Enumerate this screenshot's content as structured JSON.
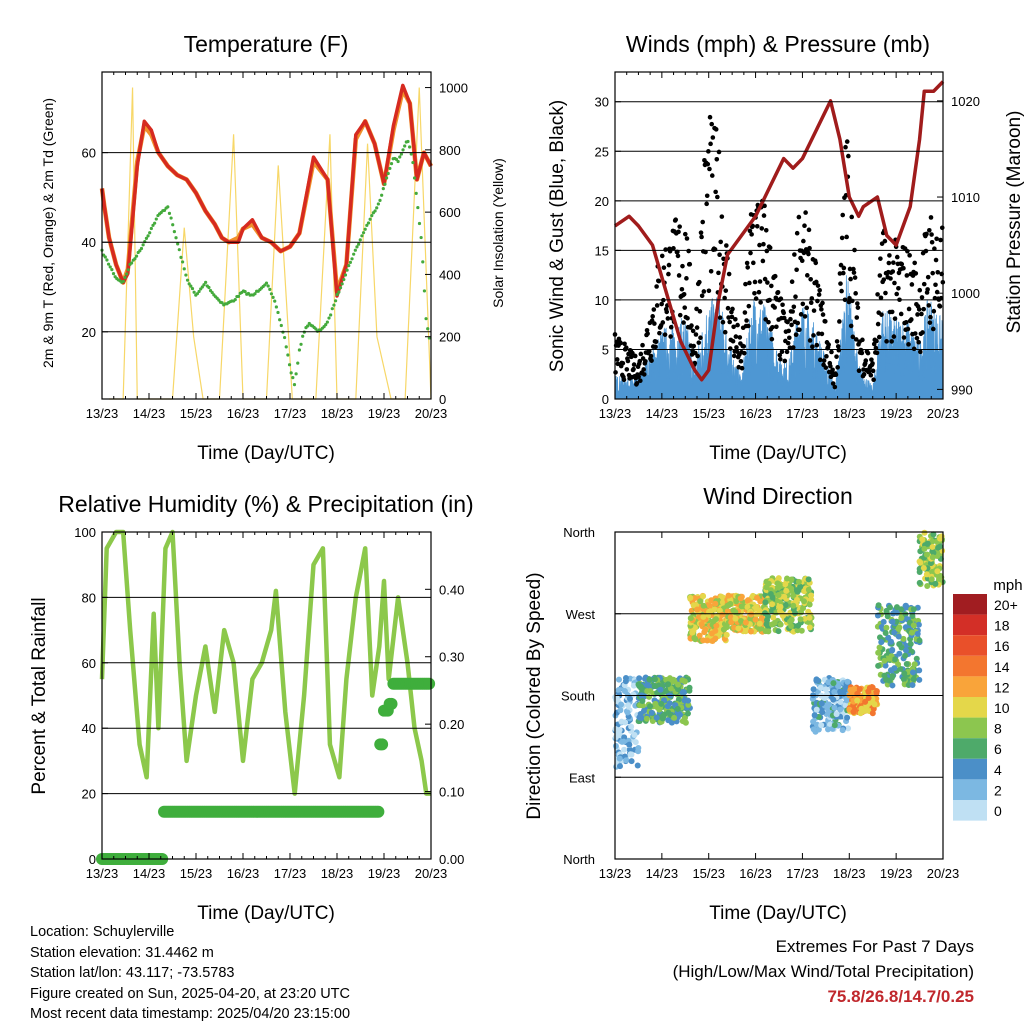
{
  "panels": {
    "temperature": {
      "title": "Temperature (F)",
      "ylabel_left": "2m & 9m T (Red, Orange) & 2m Td (Green)",
      "ylabel_right": "Solar Insolation (Yellow)",
      "xlabel": "Time (Day/UTC)"
    },
    "winds": {
      "title": "Winds (mph) & Pressure (mb)",
      "ylabel_left": "Sonic Wind & Gust (Blue, Black)",
      "ylabel_right": "Station Pressure (Maroon)",
      "xlabel": "Time (Day/UTC)"
    },
    "humidity": {
      "title": "Relative Humidity (%) & Precipitation (in)",
      "ylabel_left": "Percent & Total Rainfall",
      "xlabel": "Time (Day/UTC)"
    },
    "direction": {
      "title": "Wind Direction",
      "ylabel_left": "Direction (Colored By Speed)",
      "xlabel": "Time (Day/UTC)",
      "legend_title": "mph"
    }
  },
  "colors": {
    "temp2m": "#d62a20",
    "temp9m": "#f0902a",
    "dewpoint": "#44aa3c",
    "solar": "#f7d768",
    "wind": "#4e97d3",
    "gust": "#000000",
    "pressure": "#a01c1c",
    "humidity": "#8cc84b",
    "precip": "#3fae3c"
  },
  "chart_data": [
    {
      "type": "line",
      "title": "Temperature (F)",
      "x_ticks": [
        "13/23",
        "14/23",
        "15/23",
        "16/23",
        "17/23",
        "18/23",
        "19/23",
        "20/23"
      ],
      "xlim": [
        0,
        7
      ],
      "ylim": [
        5,
        78
      ],
      "y_ticks": [
        20,
        40,
        60
      ],
      "y2lim": [
        0,
        1050
      ],
      "y2_ticks": [
        0,
        200,
        400,
        600,
        800,
        1000
      ],
      "series": [
        {
          "name": "2m T",
          "axis": "left",
          "x": [
            0,
            0.05,
            0.15,
            0.3,
            0.45,
            0.55,
            0.75,
            0.9,
            1.05,
            1.2,
            1.4,
            1.6,
            1.8,
            2.0,
            2.2,
            2.4,
            2.55,
            2.7,
            2.9,
            3.0,
            3.2,
            3.4,
            3.6,
            3.8,
            4.0,
            4.2,
            4.5,
            4.8,
            5.0,
            5.2,
            5.4,
            5.6,
            5.8,
            6.0,
            6.2,
            6.4,
            6.55,
            6.7,
            6.85,
            7.0
          ],
          "y": [
            52,
            48,
            41,
            35,
            31,
            33,
            57,
            67,
            65,
            60,
            57,
            55,
            54,
            51,
            47,
            44,
            41,
            40,
            40,
            43,
            45,
            41,
            40,
            38,
            39,
            42,
            59,
            54,
            28,
            35,
            64,
            67,
            62,
            53,
            66,
            75,
            71,
            54,
            60,
            57
          ]
        },
        {
          "name": "9m T",
          "axis": "left",
          "x": [
            0,
            0.05,
            0.15,
            0.3,
            0.45,
            0.55,
            0.75,
            0.9,
            1.05,
            1.2,
            1.4,
            1.6,
            1.8,
            2.0,
            2.2,
            2.4,
            2.55,
            2.7,
            2.9,
            3.0,
            3.2,
            3.4,
            3.6,
            3.8,
            4.0,
            4.2,
            4.5,
            4.8,
            5.0,
            5.2,
            5.4,
            5.6,
            5.8,
            6.0,
            6.2,
            6.4,
            6.55,
            6.7,
            6.85,
            7.0
          ],
          "y": [
            52,
            48,
            41,
            35,
            31,
            34,
            58,
            66,
            64,
            60,
            57,
            55,
            54,
            51,
            47,
            44,
            41,
            40,
            41,
            43,
            44,
            41,
            40,
            38,
            39,
            42,
            58,
            54,
            29,
            35,
            63,
            67,
            62,
            53,
            65,
            74,
            71,
            54,
            60,
            57
          ]
        },
        {
          "name": "2m Td",
          "axis": "left",
          "x": [
            0,
            0.1,
            0.3,
            0.45,
            0.6,
            0.8,
            1.0,
            1.2,
            1.4,
            1.6,
            1.8,
            2.0,
            2.2,
            2.4,
            2.6,
            2.8,
            3.0,
            3.2,
            3.5,
            3.7,
            3.9,
            4.0,
            4.1,
            4.2,
            4.3,
            4.4,
            4.6,
            4.8,
            5.0,
            5.3,
            5.6,
            5.9,
            6.2,
            6.3,
            6.5,
            6.6,
            6.8,
            6.9,
            7.0
          ],
          "y": [
            38,
            36,
            32,
            31,
            35,
            38,
            42,
            46,
            48,
            40,
            32,
            28,
            31,
            28,
            26,
            27,
            29,
            28,
            31,
            26,
            18,
            12,
            8,
            16,
            20,
            22,
            20,
            22,
            28,
            36,
            43,
            49,
            59,
            58,
            63,
            59,
            40,
            22,
            17
          ]
        },
        {
          "name": "Solar",
          "axis": "right",
          "x": [
            0.15,
            0.45,
            0.65,
            0.75,
            1.0,
            1.5,
            1.75,
            1.95,
            2.15,
            2.5,
            2.8,
            3.0,
            3.1,
            3.5,
            3.75,
            4.05,
            4.55,
            4.85,
            5.0,
            5.4,
            5.65,
            5.85,
            6.15,
            6.45,
            6.75,
            7.0
          ],
          "y": [
            0,
            0,
            1000,
            0,
            0,
            0,
            550,
            200,
            0,
            0,
            850,
            0,
            0,
            0,
            750,
            0,
            0,
            850,
            0,
            0,
            820,
            200,
            0,
            0,
            1000,
            0
          ]
        }
      ]
    },
    {
      "type": "line",
      "title": "Winds (mph) & Pressure (mb)",
      "x_ticks": [
        "13/23",
        "14/23",
        "15/23",
        "16/23",
        "17/23",
        "18/23",
        "19/23",
        "20/23"
      ],
      "xlim": [
        0,
        7
      ],
      "ylim": [
        0,
        33
      ],
      "y_ticks": [
        0,
        5,
        10,
        15,
        20,
        25,
        30
      ],
      "y2lim": [
        989,
        1023
      ],
      "y2_ticks": [
        990,
        1000,
        1010,
        1020
      ],
      "series": [
        {
          "name": "Station Pressure",
          "axis": "right",
          "x": [
            0,
            0.3,
            0.5,
            0.8,
            1.1,
            1.4,
            1.7,
            1.85,
            2.0,
            2.2,
            2.4,
            2.7,
            3.0,
            3.3,
            3.6,
            3.8,
            4.0,
            4.3,
            4.6,
            4.8,
            5.0,
            5.2,
            5.3,
            5.6,
            5.8,
            6.0,
            6.3,
            6.5,
            6.6,
            6.8,
            7.0
          ],
          "y": [
            1007,
            1008,
            1007,
            1005,
            1000,
            995,
            992,
            991,
            992,
            999,
            1004,
            1006,
            1008,
            1011,
            1014,
            1013,
            1014,
            1017,
            1020,
            1016,
            1010,
            1008,
            1009,
            1010,
            1006,
            1005,
            1009,
            1016,
            1021,
            1021,
            1022
          ]
        },
        {
          "name": "Sonic Wind",
          "axis": "left",
          "x": [
            0,
            0.5,
            1.0,
            1.5,
            1.7,
            1.95,
            2.2,
            2.5,
            2.7,
            2.95,
            3.2,
            3.5,
            3.7,
            3.95,
            4.3,
            4.7,
            4.95,
            5.2,
            5.5,
            5.7,
            5.95,
            6.2,
            6.5,
            6.7,
            6.95
          ],
          "y": [
            2,
            2,
            6,
            7,
            3,
            8,
            9,
            4,
            2,
            9,
            8,
            4,
            3,
            9,
            6,
            1,
            11,
            3,
            1,
            8,
            7,
            7,
            5,
            9,
            7
          ]
        },
        {
          "name": "Gust",
          "axis": "left",
          "x": [
            0,
            0.5,
            1.0,
            1.5,
            1.7,
            1.95,
            2.2,
            2.5,
            2.7,
            2.95,
            3.2,
            3.5,
            3.7,
            3.95,
            4.3,
            4.7,
            4.95,
            5.2,
            5.5,
            5.7,
            5.95,
            6.2,
            6.5,
            6.7,
            6.95
          ],
          "y": [
            5,
            3,
            12,
            15,
            5,
            22,
            20,
            8,
            4,
            18,
            15,
            8,
            6,
            16,
            10,
            2,
            22,
            6,
            3,
            13,
            12,
            12,
            10,
            15,
            13
          ]
        }
      ]
    },
    {
      "type": "line",
      "title": "Relative Humidity (%) & Precipitation (in)",
      "x_ticks": [
        "13/23",
        "14/23",
        "15/23",
        "16/23",
        "17/23",
        "18/23",
        "19/23",
        "20/23"
      ],
      "xlim": [
        0,
        7
      ],
      "ylim": [
        0,
        100
      ],
      "y_ticks": [
        0,
        20,
        40,
        60,
        80,
        100
      ],
      "y2lim": [
        0,
        0.485
      ],
      "y2_ticks": [
        "0.00",
        "0.10",
        "0.20",
        "0.30",
        "0.40"
      ],
      "series": [
        {
          "name": "Relative Humidity",
          "axis": "left",
          "x": [
            0,
            0.1,
            0.3,
            0.45,
            0.6,
            0.8,
            0.95,
            1.1,
            1.2,
            1.35,
            1.5,
            1.65,
            1.8,
            2.0,
            2.2,
            2.4,
            2.6,
            2.8,
            3.0,
            3.2,
            3.4,
            3.6,
            3.7,
            3.9,
            4.1,
            4.3,
            4.5,
            4.7,
            4.85,
            5.05,
            5.2,
            5.4,
            5.6,
            5.75,
            5.9,
            6.0,
            6.1,
            6.3,
            6.5,
            6.65,
            6.8,
            6.9,
            7.0
          ],
          "y": [
            55,
            95,
            100,
            100,
            70,
            35,
            25,
            75,
            40,
            95,
            100,
            60,
            30,
            50,
            65,
            45,
            70,
            60,
            30,
            55,
            60,
            70,
            82,
            45,
            20,
            50,
            90,
            95,
            35,
            25,
            55,
            80,
            95,
            50,
            65,
            85,
            55,
            80,
            60,
            40,
            30,
            20,
            20
          ]
        },
        {
          "name": "Total Precipitation",
          "axis": "right",
          "x": [
            0,
            1.2,
            1.3,
            1.5,
            2.0,
            3.0,
            4.0,
            5.0,
            5.85,
            5.9,
            6.0,
            6.1,
            6.2,
            6.4,
            6.6,
            6.8,
            7.0
          ],
          "y": [
            0,
            0,
            0.07,
            0.07,
            0.07,
            0.07,
            0.07,
            0.07,
            0.07,
            0.17,
            0.22,
            0.23,
            0.26,
            0.26,
            0.26,
            0.26,
            0.26
          ]
        }
      ]
    },
    {
      "type": "scatter",
      "title": "Wind Direction",
      "x_ticks": [
        "13/23",
        "14/23",
        "15/23",
        "16/23",
        "17/23",
        "18/23",
        "19/23",
        "20/23"
      ],
      "xlim": [
        0,
        7
      ],
      "y_ticks": [
        "North",
        "East",
        "South",
        "West",
        "North"
      ],
      "ylim": [
        0,
        360
      ],
      "legend": {
        "title": "mph",
        "labels": [
          "20+",
          "18",
          "16",
          "14",
          "12",
          "10",
          "8",
          "6",
          "4",
          "2",
          "0"
        ],
        "colors": [
          "#a11d21",
          "#d32f27",
          "#e9502a",
          "#f3762f",
          "#f9a43a",
          "#e4d74a",
          "#8cc64f",
          "#4eaa6a",
          "#4b8fc8",
          "#7cb8e2",
          "#bfe0f3"
        ]
      },
      "clusters": [
        {
          "x": [
            0.0,
            0.5
          ],
          "dir": [
            100,
            200
          ],
          "speed": 2
        },
        {
          "x": [
            0.5,
            1.6
          ],
          "dir": [
            150,
            200
          ],
          "speed": 6
        },
        {
          "x": [
            1.6,
            2.4
          ],
          "dir": [
            240,
            290
          ],
          "speed": 10
        },
        {
          "x": [
            2.4,
            3.2
          ],
          "dir": [
            250,
            290
          ],
          "speed": 10
        },
        {
          "x": [
            3.2,
            4.2
          ],
          "dir": [
            250,
            310
          ],
          "speed": 8
        },
        {
          "x": [
            4.2,
            5.0
          ],
          "dir": [
            140,
            200
          ],
          "speed": 3
        },
        {
          "x": [
            5.0,
            5.6
          ],
          "dir": [
            160,
            190
          ],
          "speed": 12
        },
        {
          "x": [
            5.6,
            6.5
          ],
          "dir": [
            190,
            280
          ],
          "speed": 6
        },
        {
          "x": [
            6.5,
            7.0
          ],
          "dir": [
            300,
            360
          ],
          "speed": 8
        }
      ]
    }
  ],
  "footer": {
    "location": "Location: Schuylerville",
    "elevation": "Station elevation: 31.4462 m",
    "latlon": "Station lat/lon: 43.117; -73.5783",
    "created": "Figure created on Sun, 2025-04-20, at 23:20 UTC",
    "recent": "Most recent data timestamp: 2025/04/20 23:15:00"
  },
  "extremes": {
    "title": "Extremes For Past 7 Days",
    "subtitle": "(High/Low/Max Wind/Total Precipitation)",
    "values": "75.8/26.8/14.7/0.25"
  }
}
